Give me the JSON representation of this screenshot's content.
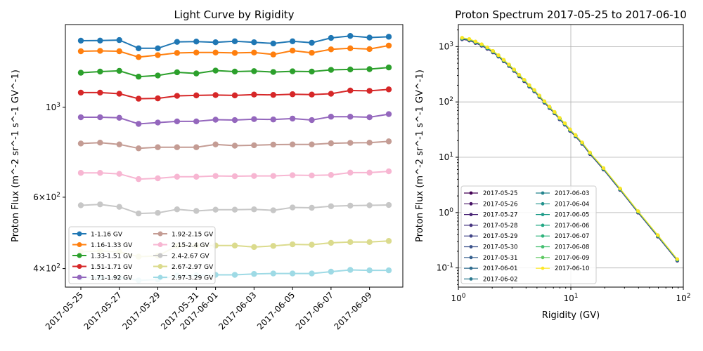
{
  "chart_data": [
    {
      "type": "line",
      "title": "Light Curve by Rigidity",
      "xlabel": "",
      "ylabel": "Proton Flux (m^-2 sr^-1 s^-1 GV^-1)",
      "yscale": "log",
      "ylim": [
        360,
        1600
      ],
      "x": [
        "2017-05-25",
        "2017-05-26",
        "2017-05-27",
        "2017-05-28",
        "2017-05-29",
        "2017-05-30",
        "2017-05-31",
        "2017-06-01",
        "2017-06-02",
        "2017-06-03",
        "2017-06-04",
        "2017-06-05",
        "2017-06-06",
        "2017-06-07",
        "2017-06-08",
        "2017-06-09",
        "2017-06-10"
      ],
      "xticks": [
        "2017-05-25",
        "2017-05-27",
        "2017-05-29",
        "2017-05-31",
        "2017-06-01",
        "2017-06-03",
        "2017-06-05",
        "2017-06-07",
        "2017-06-09"
      ],
      "yticks": [
        {
          "value": 1000,
          "label": "10^3"
        },
        {
          "value": 600,
          "label": "6×10^2"
        },
        {
          "value": 400,
          "label": "4×10^2"
        }
      ],
      "grid": false,
      "legend": "lower-left",
      "series": [
        {
          "name": "1-1.16 GV",
          "color": "#1f77b4",
          "values": [
            1460,
            1461,
            1465,
            1398,
            1398,
            1450,
            1453,
            1447,
            1455,
            1447,
            1437,
            1455,
            1443,
            1483,
            1500,
            1486,
            1493
          ]
        },
        {
          "name": "1.16-1.33 GV",
          "color": "#ff7f0e",
          "values": [
            1375,
            1378,
            1375,
            1330,
            1345,
            1362,
            1365,
            1365,
            1362,
            1365,
            1350,
            1380,
            1363,
            1390,
            1398,
            1392,
            1420
          ]
        },
        {
          "name": "1.33-1.51 GV",
          "color": "#2ca02c",
          "values": [
            1217,
            1225,
            1230,
            1190,
            1198,
            1220,
            1212,
            1232,
            1225,
            1228,
            1222,
            1227,
            1225,
            1237,
            1240,
            1242,
            1254
          ]
        },
        {
          "name": "1.51-1.71 GV",
          "color": "#d62728",
          "values": [
            1087,
            1087,
            1080,
            1050,
            1052,
            1067,
            1070,
            1072,
            1070,
            1075,
            1073,
            1077,
            1075,
            1080,
            1100,
            1098,
            1107
          ]
        },
        {
          "name": "1.71-1.92 GV",
          "color": "#9467bd",
          "values": [
            945,
            945,
            942,
            910,
            917,
            923,
            923,
            932,
            930,
            935,
            933,
            938,
            930,
            948,
            948,
            945,
            962
          ]
        },
        {
          "name": "1.92-2.15 GV",
          "color": "#c49c94",
          "values": [
            814,
            818,
            810,
            792,
            797,
            797,
            797,
            810,
            804,
            806,
            809,
            810,
            810,
            815,
            817,
            818,
            824
          ]
        },
        {
          "name": "2.15-2.4 GV",
          "color": "#f7b6d2",
          "values": [
            689,
            689,
            685,
            665,
            668,
            674,
            674,
            677,
            676,
            677,
            677,
            680,
            679,
            681,
            690,
            690,
            695
          ]
        },
        {
          "name": "2.4-2.67 GV",
          "color": "#c7c7c7",
          "values": [
            573,
            576,
            568,
            547,
            549,
            560,
            555,
            559,
            559,
            560,
            557,
            566,
            565,
            570,
            572,
            573,
            574
          ]
        },
        {
          "name": "2.67-2.97 GV",
          "color": "#dbdb8d",
          "values": [
            440,
            442,
            440,
            428,
            430,
            455,
            456,
            456,
            456,
            452,
            455,
            459,
            458,
            463,
            465,
            465,
            468
          ]
        },
        {
          "name": "2.97-3.29 GV",
          "color": "#9edae5",
          "values": [
            380,
            380,
            380,
            374,
            376,
            384,
            385,
            386,
            386,
            388,
            389,
            389,
            389,
            393,
            397,
            396,
            396
          ]
        }
      ]
    },
    {
      "type": "line",
      "title": "Proton Spectrum 2017-05-25 to 2017-06-10",
      "xlabel": "Rigidity (GV)",
      "ylabel": "Proton Flux (m^-2 sr^-1 s^-1 GV^-1)",
      "xscale": "log",
      "yscale": "log",
      "xlim": [
        1,
        100
      ],
      "ylim": [
        0.045,
        2500
      ],
      "xticks": [
        {
          "value": 1,
          "label": "10^0"
        },
        {
          "value": 10,
          "label": "10^1"
        },
        {
          "value": 100,
          "label": "10^2"
        }
      ],
      "yticks": [
        {
          "value": 0.1,
          "label": "10^-1"
        },
        {
          "value": 1,
          "label": "10^0"
        },
        {
          "value": 10,
          "label": "10^1"
        },
        {
          "value": 100,
          "label": "10^2"
        },
        {
          "value": 1000,
          "label": "10^3"
        }
      ],
      "grid": true,
      "legend": "lower-left",
      "x": [
        1.08,
        1.25,
        1.42,
        1.61,
        1.81,
        2.03,
        2.27,
        2.53,
        2.82,
        3.13,
        3.47,
        3.85,
        4.27,
        4.73,
        5.25,
        5.82,
        6.45,
        7.16,
        7.95,
        8.84,
        9.84,
        11.0,
        12.6,
        14.8,
        19.5,
        27.4,
        39.6,
        59.3,
        88.4
      ],
      "y": [
        1400,
        1330,
        1200,
        1070,
        940,
        810,
        680,
        560,
        460,
        375,
        300,
        245,
        195,
        160,
        127,
        100,
        80,
        64,
        50,
        40,
        31,
        24.5,
        18,
        11.8,
        6.2,
        2.65,
        1.03,
        0.38,
        0.14
      ],
      "series": [
        {
          "name": "2017-05-25",
          "color": "#440154"
        },
        {
          "name": "2017-05-26",
          "color": "#471365"
        },
        {
          "name": "2017-05-27",
          "color": "#482475"
        },
        {
          "name": "2017-05-28",
          "color": "#463480"
        },
        {
          "name": "2017-05-29",
          "color": "#414487"
        },
        {
          "name": "2017-05-30",
          "color": "#3b528b"
        },
        {
          "name": "2017-05-31",
          "color": "#355f8d"
        },
        {
          "name": "2017-06-01",
          "color": "#2f6c8e"
        },
        {
          "name": "2017-06-02",
          "color": "#2a788e"
        },
        {
          "name": "2017-06-03",
          "color": "#25848e"
        },
        {
          "name": "2017-06-04",
          "color": "#21918c"
        },
        {
          "name": "2017-06-05",
          "color": "#1e9c89"
        },
        {
          "name": "2017-06-06",
          "color": "#22a884"
        },
        {
          "name": "2017-06-07",
          "color": "#2fb47c"
        },
        {
          "name": "2017-06-08",
          "color": "#44bf70"
        },
        {
          "name": "2017-06-09",
          "color": "#5ec962"
        },
        {
          "name": "2017-06-10",
          "color": "#fde725"
        }
      ]
    }
  ]
}
